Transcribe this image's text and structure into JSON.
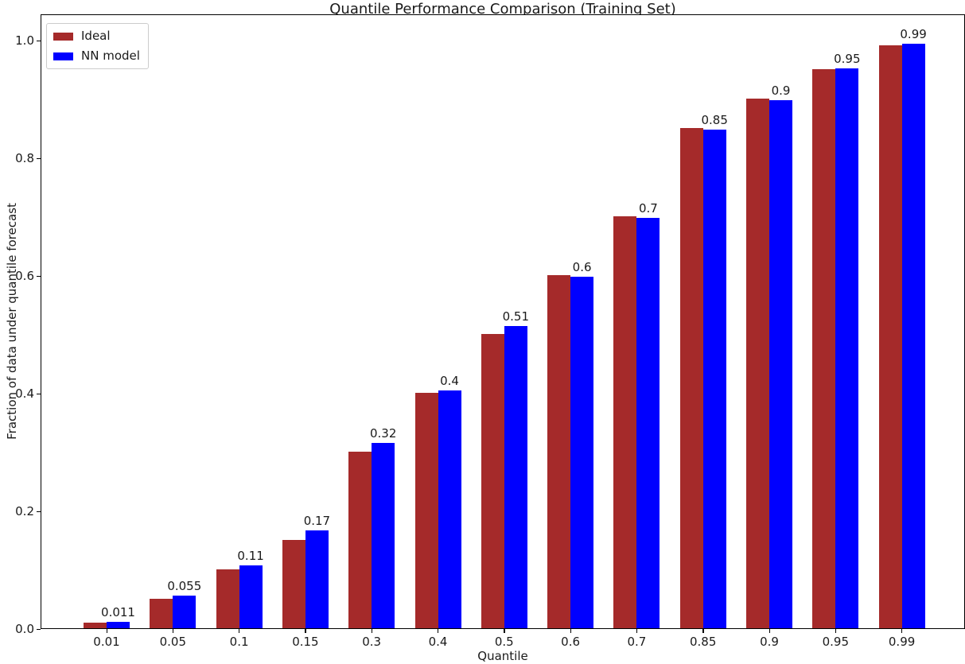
{
  "chart_data": {
    "type": "bar",
    "title": "Quantile Performance Comparison (Training Set)",
    "xlabel": "Quantile",
    "ylabel": "Fraction of data under quantile forecast",
    "categories": [
      "0.01",
      "0.05",
      "0.1",
      "0.15",
      "0.3",
      "0.4",
      "0.5",
      "0.6",
      "0.7",
      "0.85",
      "0.9",
      "0.95",
      "0.99"
    ],
    "series": [
      {
        "name": "Ideal",
        "color": "#A52A2A",
        "values": [
          0.01,
          0.05,
          0.1,
          0.15,
          0.3,
          0.4,
          0.5,
          0.6,
          0.7,
          0.85,
          0.9,
          0.95,
          0.99
        ]
      },
      {
        "name": "NN model",
        "color": "#0000FF",
        "values": [
          0.011,
          0.055,
          0.107,
          0.166,
          0.315,
          0.404,
          0.513,
          0.597,
          0.697,
          0.847,
          0.897,
          0.951,
          0.993
        ]
      }
    ],
    "bar_labels": [
      "0.011",
      "0.055",
      "0.11",
      "0.17",
      "0.32",
      "0.4",
      "0.51",
      "0.6",
      "0.7",
      "0.85",
      "0.9",
      "0.95",
      "0.99"
    ],
    "y_ticks": [
      "0.0",
      "0.2",
      "0.4",
      "0.6",
      "0.8",
      "1.0"
    ],
    "ylim": [
      0.0,
      1.045
    ],
    "grid": false,
    "legend_position": "upper left",
    "axis_color": "#000000"
  }
}
